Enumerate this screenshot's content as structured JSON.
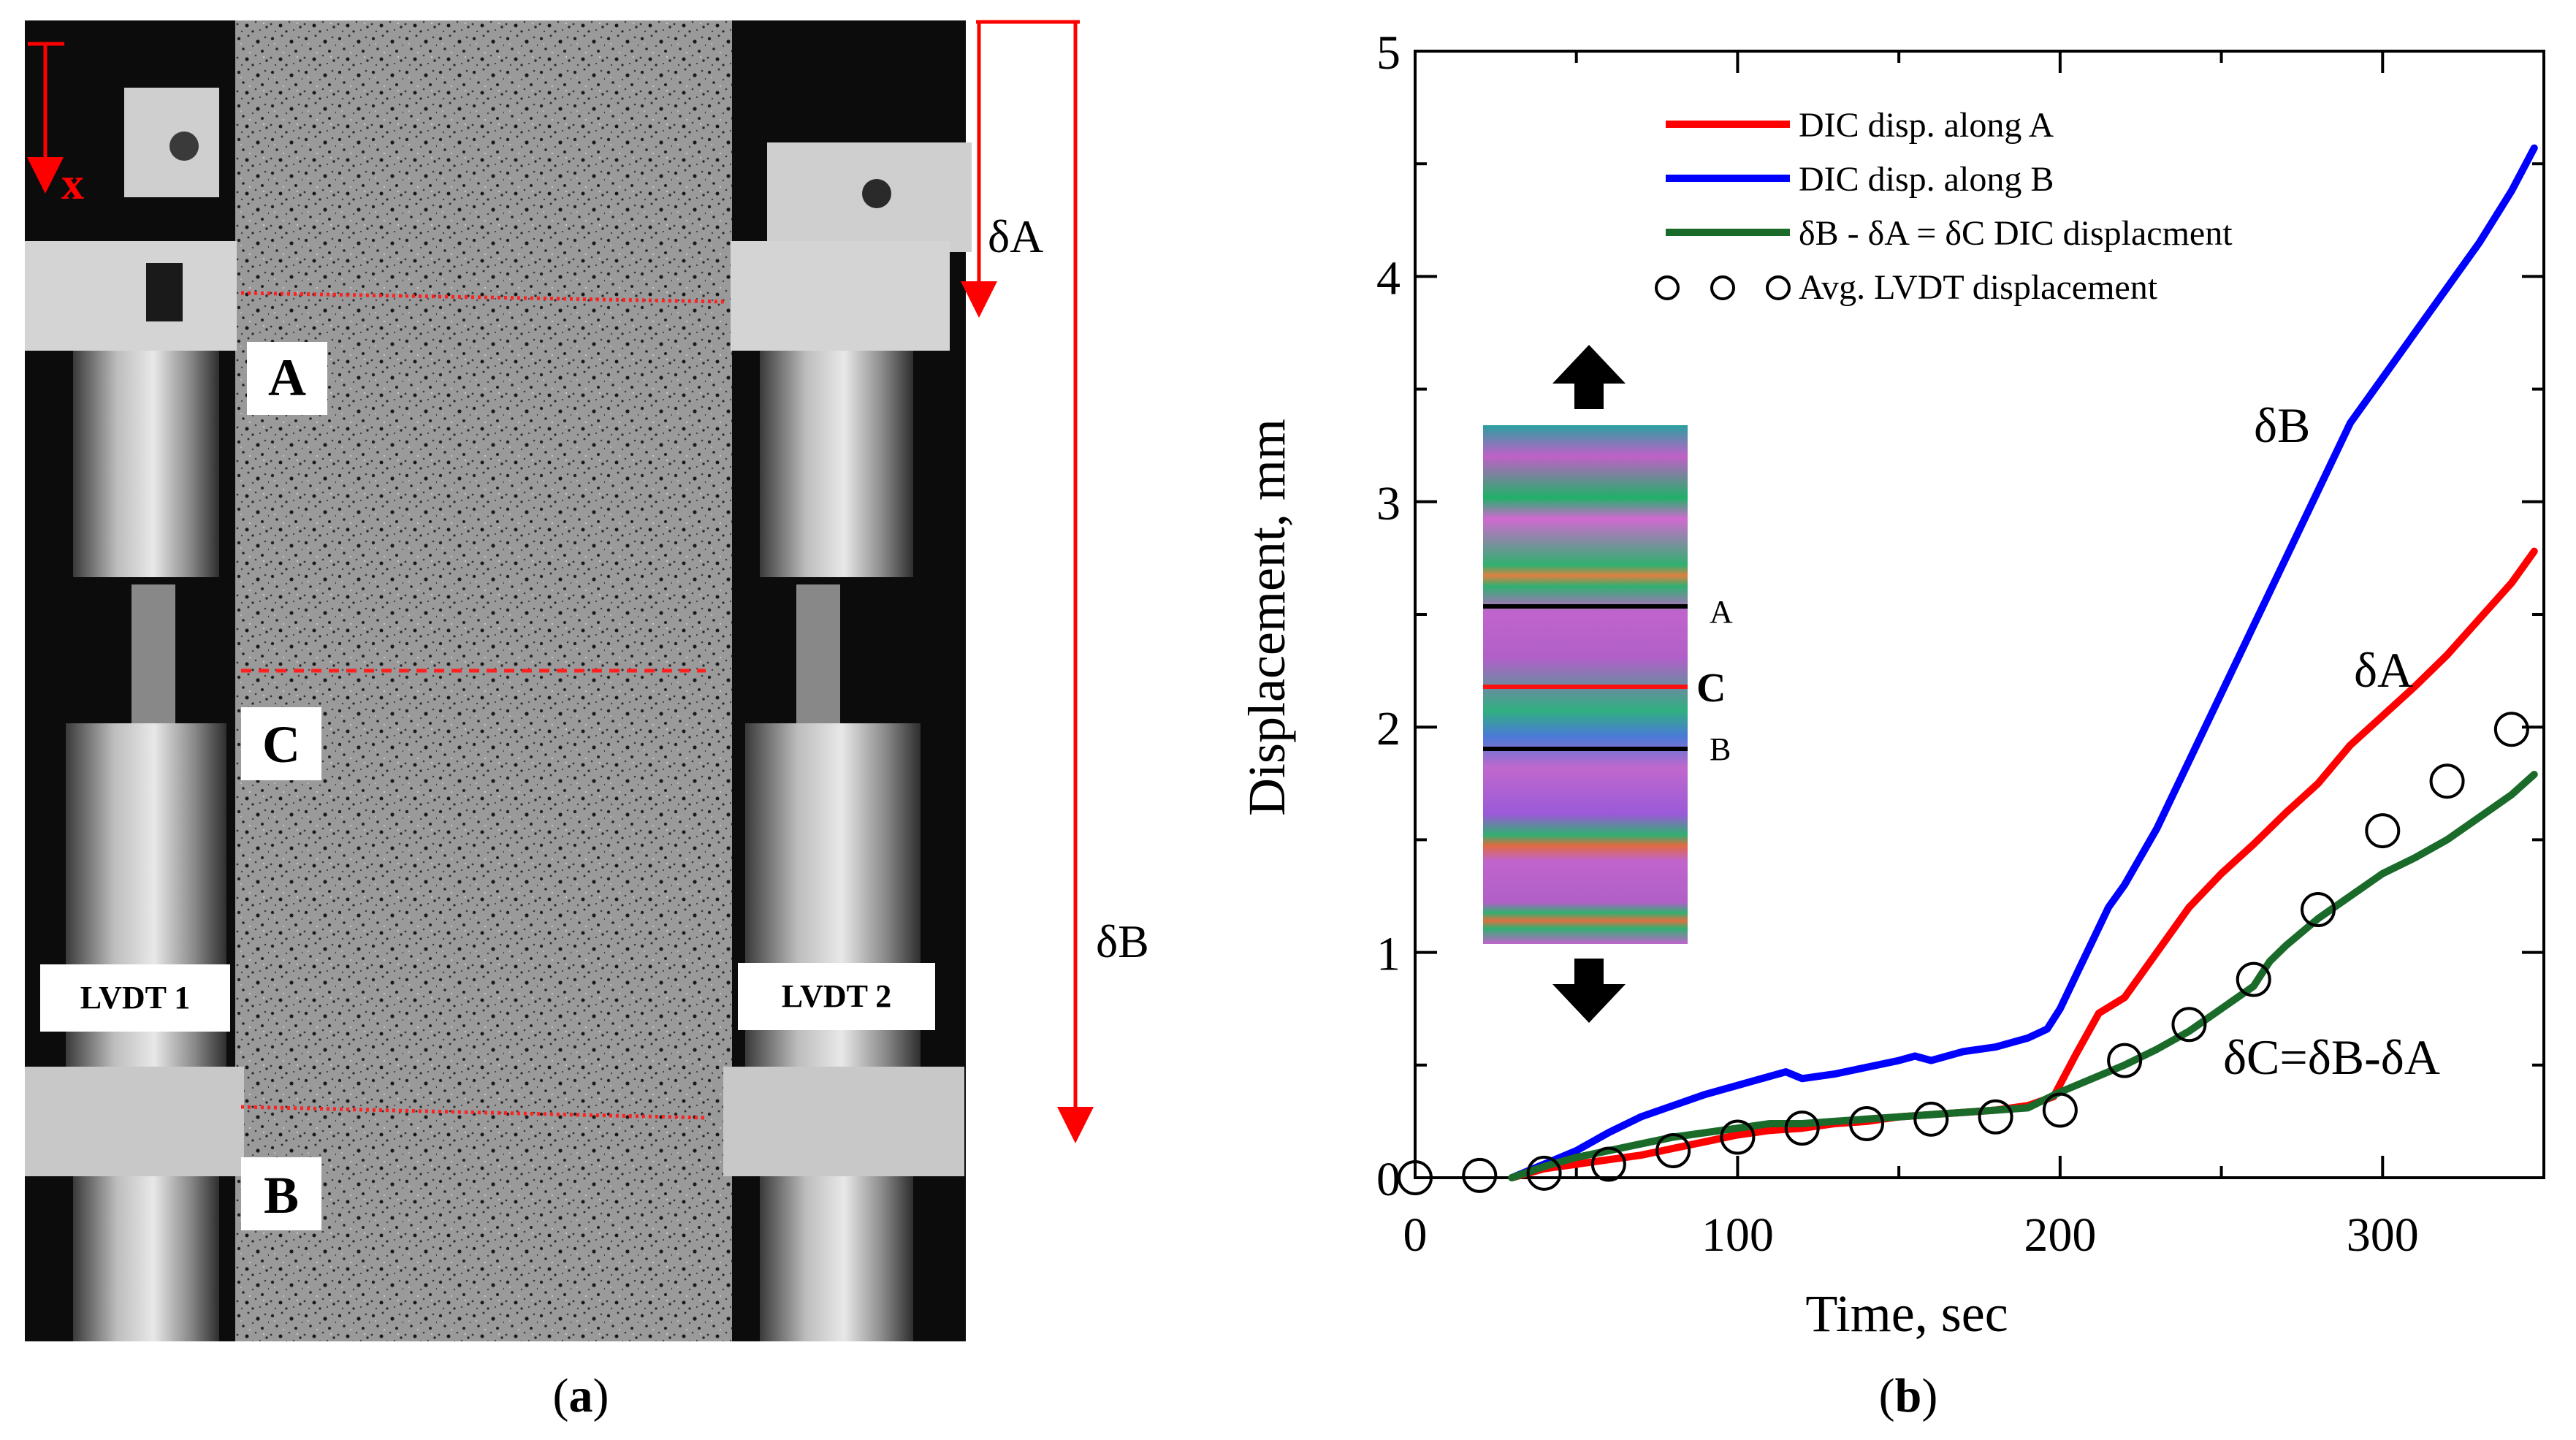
{
  "panel_a": {
    "caption": "(a)",
    "caption_letter": "a",
    "labels": {
      "A": "A",
      "B": "B",
      "C": "C",
      "lvdt1": "LVDT 1",
      "lvdt2": "LVDT 2",
      "x_axis": "x",
      "delta_a": "δA",
      "delta_b": "δB"
    }
  },
  "panel_b": {
    "caption": "(b)",
    "caption_letter": "b",
    "inset_labels": {
      "A": "A",
      "C": "C",
      "B": "B"
    },
    "curve_labels": {
      "dB": "δB",
      "dA": "δA",
      "dC": "δC=δB-δA"
    }
  },
  "colors": {
    "red": "#ff0000",
    "blue": "#0000ff",
    "green": "#1a6b2a",
    "black": "#000000"
  },
  "chart_data": {
    "type": "line",
    "title": "",
    "xlabel": "Time, sec",
    "ylabel": "Displacement, mm",
    "xlim": [
      0,
      350
    ],
    "ylim": [
      0,
      5
    ],
    "xticks": [
      0,
      100,
      200,
      300
    ],
    "yticks": [
      0,
      1,
      2,
      3,
      4,
      5
    ],
    "legend_position": "top-right",
    "series": [
      {
        "name": "DIC disp. along A",
        "color": "#ff0000",
        "style": "line",
        "x": [
          30,
          40,
          50,
          60,
          70,
          80,
          90,
          100,
          110,
          120,
          130,
          140,
          150,
          160,
          170,
          180,
          190,
          198,
          205,
          212,
          220,
          230,
          240,
          250,
          260,
          270,
          280,
          290,
          300,
          310,
          320,
          330,
          340,
          347
        ],
        "y": [
          0.0,
          0.04,
          0.06,
          0.08,
          0.1,
          0.13,
          0.16,
          0.19,
          0.21,
          0.22,
          0.24,
          0.25,
          0.27,
          0.28,
          0.29,
          0.3,
          0.32,
          0.36,
          0.55,
          0.73,
          0.8,
          1.0,
          1.2,
          1.35,
          1.48,
          1.62,
          1.75,
          1.92,
          2.05,
          2.18,
          2.32,
          2.48,
          2.64,
          2.78
        ]
      },
      {
        "name": "DIC disp. along B",
        "color": "#0000ff",
        "style": "line",
        "x": [
          30,
          40,
          50,
          60,
          70,
          80,
          90,
          100,
          110,
          115,
          120,
          130,
          140,
          150,
          155,
          160,
          170,
          180,
          190,
          196,
          200,
          205,
          210,
          215,
          220,
          230,
          240,
          250,
          260,
          270,
          280,
          290,
          300,
          310,
          320,
          330,
          340,
          347
        ],
        "y": [
          0.0,
          0.06,
          0.12,
          0.2,
          0.27,
          0.32,
          0.37,
          0.41,
          0.45,
          0.47,
          0.44,
          0.46,
          0.49,
          0.52,
          0.54,
          0.52,
          0.56,
          0.58,
          0.62,
          0.66,
          0.75,
          0.9,
          1.05,
          1.2,
          1.3,
          1.55,
          1.85,
          2.15,
          2.45,
          2.75,
          3.05,
          3.35,
          3.55,
          3.75,
          3.95,
          4.15,
          4.38,
          4.57
        ]
      },
      {
        "name": "δB - δA = δC  DIC displacment",
        "color": "#1a6b2a",
        "style": "line",
        "x": [
          30,
          40,
          50,
          60,
          70,
          80,
          90,
          100,
          110,
          120,
          130,
          140,
          150,
          160,
          170,
          180,
          190,
          200,
          210,
          220,
          230,
          240,
          250,
          260,
          265,
          270,
          280,
          290,
          300,
          310,
          320,
          330,
          340,
          347
        ],
        "y": [
          0.0,
          0.05,
          0.09,
          0.12,
          0.15,
          0.18,
          0.2,
          0.22,
          0.24,
          0.24,
          0.25,
          0.26,
          0.27,
          0.28,
          0.29,
          0.3,
          0.31,
          0.38,
          0.44,
          0.5,
          0.57,
          0.65,
          0.75,
          0.85,
          0.96,
          1.03,
          1.15,
          1.25,
          1.35,
          1.42,
          1.5,
          1.6,
          1.7,
          1.79
        ]
      },
      {
        "name": "Avg. LVDT displacement",
        "color": "#000000",
        "style": "markers",
        "x": [
          0,
          20,
          40,
          60,
          80,
          100,
          120,
          140,
          160,
          180,
          200,
          220,
          240,
          260,
          280,
          300,
          320,
          340
        ],
        "y": [
          0.0,
          0.01,
          0.02,
          0.06,
          0.12,
          0.18,
          0.22,
          0.24,
          0.26,
          0.27,
          0.3,
          0.52,
          0.68,
          0.88,
          1.19,
          1.54,
          1.76,
          1.99
        ]
      }
    ]
  }
}
